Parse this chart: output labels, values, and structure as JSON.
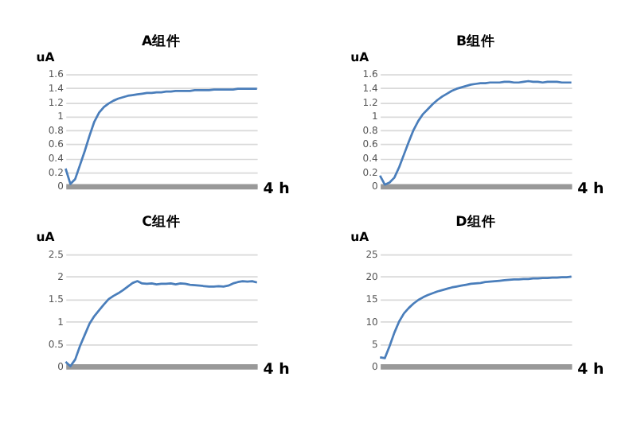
{
  "chart_data": [
    {
      "type": "line",
      "title": "A组件",
      "xlabel": "4 h",
      "ylabel": "uA",
      "categories": [
        null,
        null,
        null,
        null,
        null,
        null,
        null,
        null,
        null,
        null,
        null,
        null,
        null,
        null,
        null,
        null,
        null,
        null,
        null,
        null,
        null,
        null,
        null,
        null,
        null,
        null,
        null,
        null,
        null,
        null,
        null,
        null,
        null,
        null,
        null,
        null,
        null,
        null,
        null,
        null,
        null
      ],
      "series": [
        {
          "color": "#4a7ebb",
          "values": [
            0.25,
            0.03,
            0.1,
            0.3,
            0.5,
            0.72,
            0.92,
            1.05,
            1.13,
            1.18,
            1.22,
            1.25,
            1.27,
            1.29,
            1.3,
            1.31,
            1.32,
            1.33,
            1.33,
            1.34,
            1.34,
            1.35,
            1.35,
            1.36,
            1.36,
            1.36,
            1.36,
            1.37,
            1.37,
            1.37,
            1.37,
            1.38,
            1.38,
            1.38,
            1.38,
            1.38,
            1.39,
            1.39,
            1.39,
            1.39,
            1.39
          ]
        }
      ],
      "ylim": [
        0,
        1.6
      ],
      "yticks": [
        0,
        0.2,
        0.4,
        0.6,
        0.8,
        1,
        1.2,
        1.4,
        1.6
      ],
      "grid": "y",
      "tick_labels": "y"
    },
    {
      "type": "line",
      "title": "B组件",
      "xlabel": "4 h",
      "ylabel": "uA",
      "categories": [
        null,
        null,
        null,
        null,
        null,
        null,
        null,
        null,
        null,
        null,
        null,
        null,
        null,
        null,
        null,
        null,
        null,
        null,
        null,
        null,
        null,
        null,
        null,
        null,
        null,
        null,
        null,
        null,
        null,
        null,
        null,
        null,
        null,
        null,
        null,
        null,
        null,
        null,
        null,
        null,
        null
      ],
      "series": [
        {
          "color": "#4a7ebb",
          "values": [
            0.15,
            0.02,
            0.05,
            0.12,
            0.27,
            0.45,
            0.63,
            0.8,
            0.93,
            1.03,
            1.1,
            1.17,
            1.23,
            1.28,
            1.32,
            1.36,
            1.39,
            1.41,
            1.43,
            1.45,
            1.46,
            1.47,
            1.47,
            1.48,
            1.48,
            1.48,
            1.49,
            1.49,
            1.48,
            1.48,
            1.49,
            1.5,
            1.49,
            1.49,
            1.48,
            1.49,
            1.49,
            1.49,
            1.48,
            1.48,
            1.48
          ]
        }
      ],
      "ylim": [
        0,
        1.6
      ],
      "yticks": [
        0,
        0.2,
        0.4,
        0.6,
        0.8,
        1,
        1.2,
        1.4,
        1.6
      ],
      "grid": "y",
      "tick_labels": "y"
    },
    {
      "type": "line",
      "title": "C组件",
      "xlabel": "4 h",
      "ylabel": "uA",
      "categories": [
        null,
        null,
        null,
        null,
        null,
        null,
        null,
        null,
        null,
        null,
        null,
        null,
        null,
        null,
        null,
        null,
        null,
        null,
        null,
        null,
        null,
        null,
        null,
        null,
        null,
        null,
        null,
        null,
        null,
        null,
        null,
        null,
        null,
        null,
        null,
        null,
        null,
        null,
        null,
        null,
        null
      ],
      "series": [
        {
          "color": "#4a7ebb",
          "values": [
            0.1,
            0.0,
            0.15,
            0.45,
            0.7,
            0.95,
            1.12,
            1.25,
            1.38,
            1.5,
            1.57,
            1.63,
            1.7,
            1.78,
            1.86,
            1.9,
            1.85,
            1.84,
            1.85,
            1.83,
            1.84,
            1.84,
            1.85,
            1.83,
            1.85,
            1.84,
            1.82,
            1.81,
            1.8,
            1.79,
            1.78,
            1.78,
            1.79,
            1.78,
            1.8,
            1.85,
            1.88,
            1.9,
            1.89,
            1.9,
            1.87
          ]
        }
      ],
      "ylim": [
        0,
        2.5
      ],
      "yticks": [
        0,
        0.5,
        1,
        1.5,
        2,
        2.5
      ],
      "grid": "y",
      "tick_labels": "y"
    },
    {
      "type": "line",
      "title": "D组件",
      "xlabel": "4 h",
      "ylabel": "uA",
      "categories": [
        null,
        null,
        null,
        null,
        null,
        null,
        null,
        null,
        null,
        null,
        null,
        null,
        null,
        null,
        null,
        null,
        null,
        null,
        null,
        null,
        null,
        null,
        null,
        null,
        null,
        null,
        null,
        null,
        null,
        null,
        null,
        null,
        null,
        null,
        null,
        null,
        null,
        null,
        null,
        null,
        null
      ],
      "series": [
        {
          "color": "#4a7ebb",
          "values": [
            2,
            1.8,
            4.5,
            7.5,
            10,
            11.8,
            13,
            14,
            14.8,
            15.4,
            15.9,
            16.3,
            16.7,
            17,
            17.3,
            17.6,
            17.8,
            18,
            18.2,
            18.4,
            18.5,
            18.6,
            18.8,
            18.9,
            19,
            19.1,
            19.2,
            19.3,
            19.4,
            19.4,
            19.5,
            19.5,
            19.6,
            19.6,
            19.7,
            19.7,
            19.8,
            19.8,
            19.9,
            19.9,
            20
          ]
        }
      ],
      "ylim": [
        0,
        25
      ],
      "yticks": [
        0,
        5,
        10,
        15,
        20,
        25
      ],
      "grid": "y",
      "tick_labels": "y"
    }
  ]
}
